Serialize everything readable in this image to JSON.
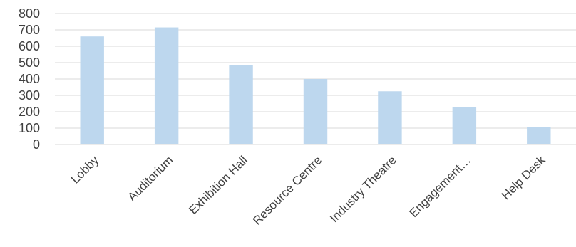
{
  "chart_data": {
    "type": "bar",
    "categories": [
      "Lobby",
      "Auditorium",
      "Exhibition Hall",
      "Resource Centre",
      "Industry Theatre",
      "Engagement…",
      "Help Desk"
    ],
    "values": [
      660,
      715,
      485,
      400,
      325,
      230,
      105
    ],
    "title": "",
    "xlabel": "",
    "ylabel": "",
    "ylim": [
      0,
      800
    ],
    "yticks": [
      0,
      100,
      200,
      300,
      400,
      500,
      600,
      700,
      800
    ],
    "grid": true,
    "legend": "none",
    "colors": {
      "bar": "#bdd7ee",
      "grid": "#d9d9d9",
      "text": "#404040"
    }
  }
}
